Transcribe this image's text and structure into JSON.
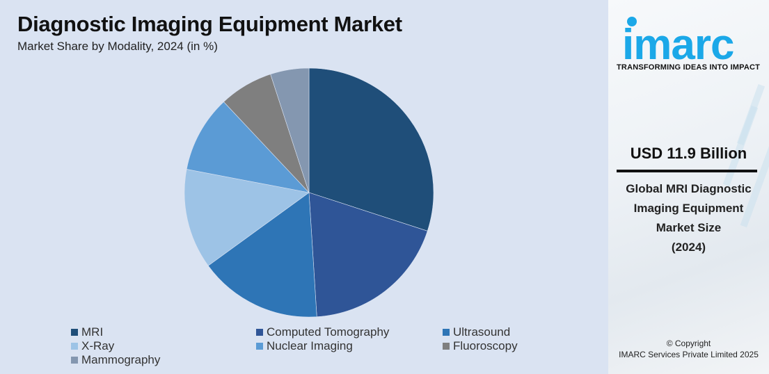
{
  "header": {
    "title": "Diagnostic Imaging Equipment Market",
    "subtitle": "Market Share by Modality, 2024 (in %)"
  },
  "sidebar": {
    "brand": "imarc",
    "tagline": "TRANSFORMING IDEAS INTO IMPACT",
    "value": "USD 11.9 Billion",
    "desc_lines": [
      "Global MRI Diagnostic",
      "Imaging Equipment",
      "Market Size",
      "(2024)"
    ],
    "copyright_line1": "© Copyright",
    "copyright_line2": "IMARC Services Private Limited 2025",
    "brand_color": "#1ba8e8"
  },
  "chart_data": {
    "type": "pie",
    "title": "Diagnostic Imaging Equipment Market",
    "subtitle": "Market Share by Modality, 2024 (in %)",
    "categories": [
      "MRI",
      "Computed Tomography",
      "Ultrasound",
      "X-Ray",
      "Nuclear Imaging",
      "Fluoroscopy",
      "Mammography"
    ],
    "values": [
      30,
      19,
      16,
      13,
      10,
      7,
      5
    ],
    "colors": [
      "#1f4e79",
      "#2f5597",
      "#2e75b6",
      "#9dc3e6",
      "#5b9bd5",
      "#7f7f7f",
      "#8497b0"
    ],
    "start_angle": "12 o'clock, clockwise",
    "legend_position": "bottom"
  }
}
